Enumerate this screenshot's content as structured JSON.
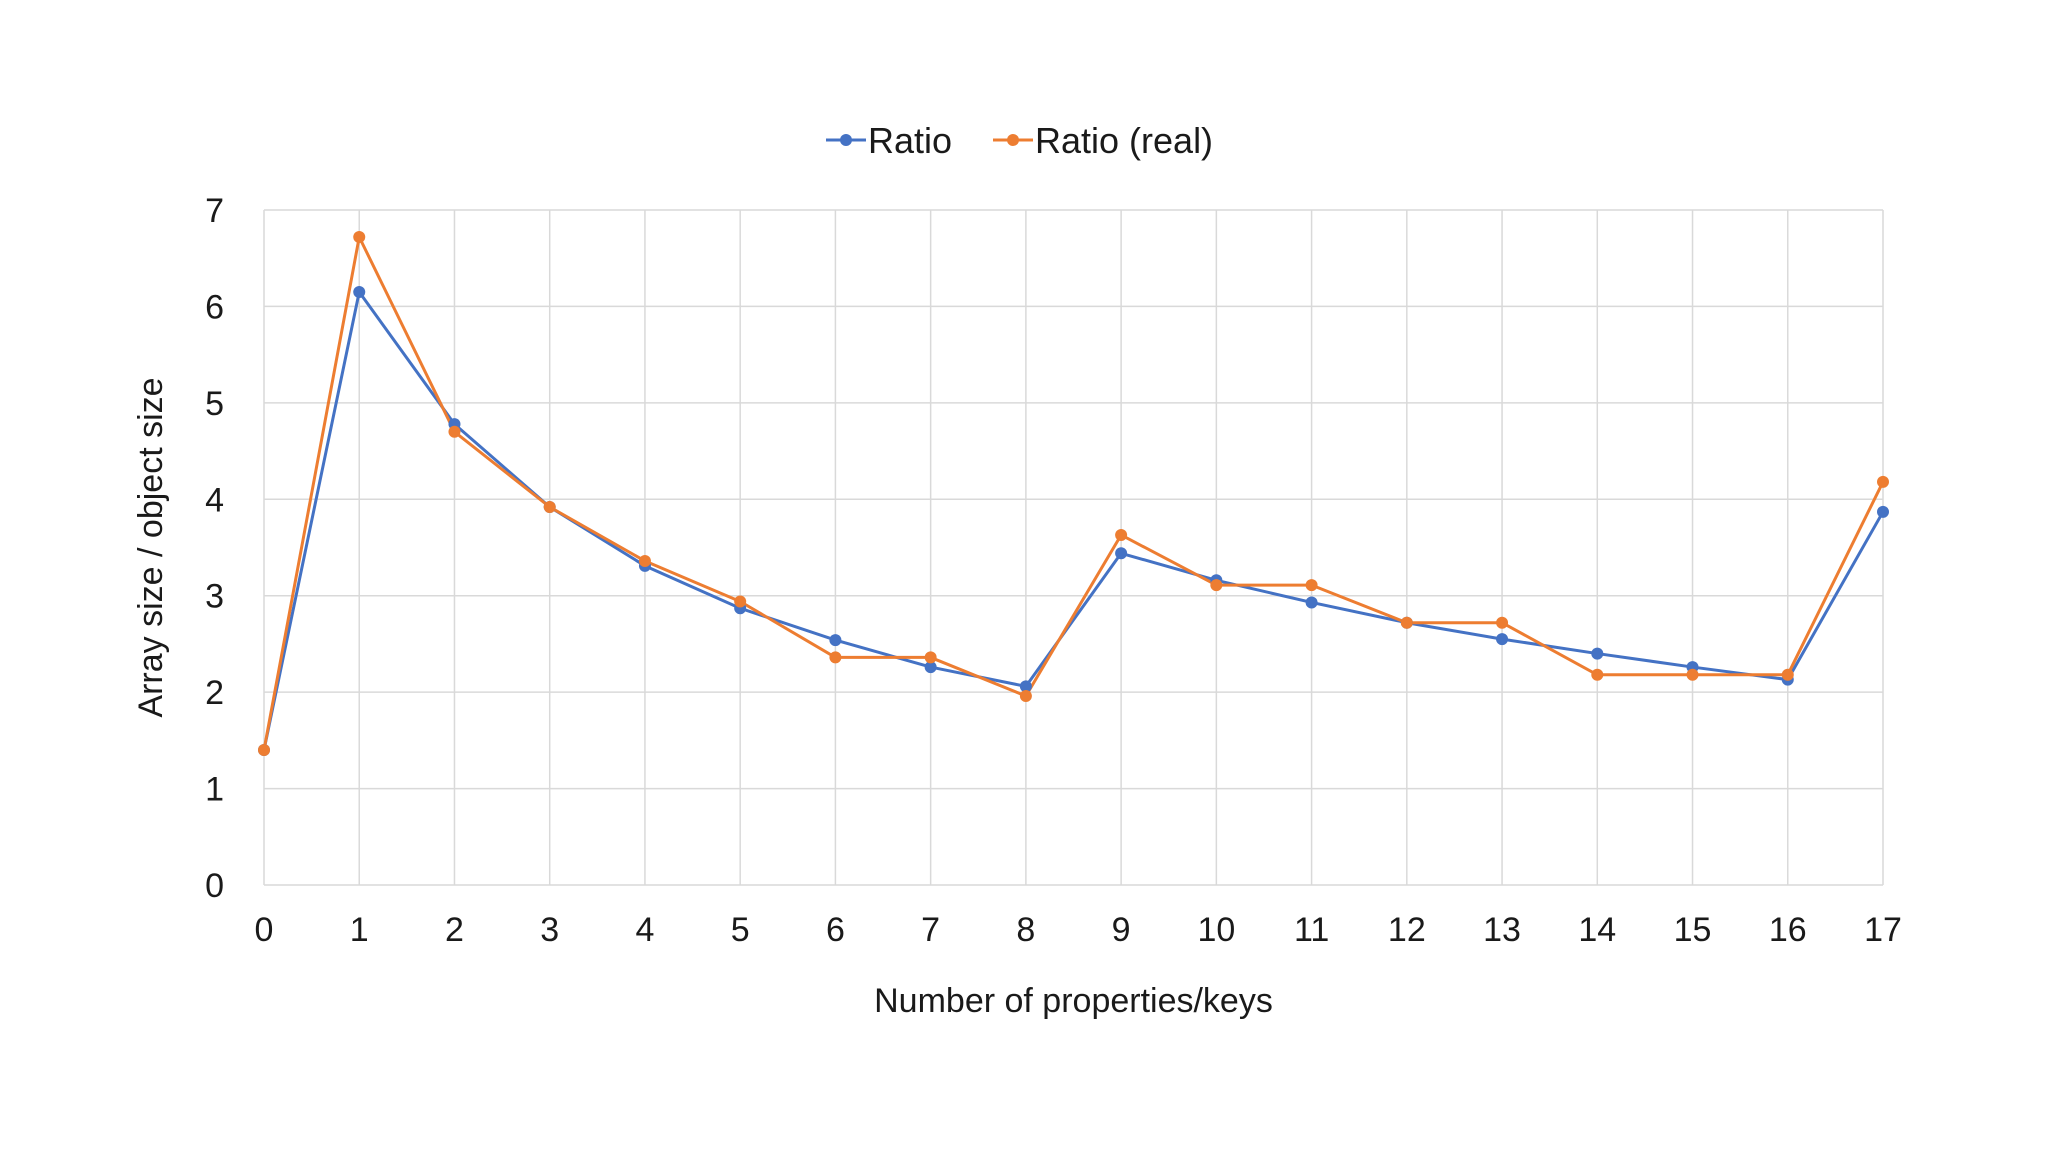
{
  "chart_data": {
    "type": "line",
    "title": "",
    "xlabel": "Number of properties/keys",
    "ylabel": "Array size / object size",
    "x": [
      0,
      1,
      2,
      3,
      4,
      5,
      6,
      7,
      8,
      9,
      10,
      11,
      12,
      13,
      14,
      15,
      16,
      17
    ],
    "xlim": [
      0,
      17
    ],
    "ylim": [
      0,
      7
    ],
    "yticks": [
      0,
      1,
      2,
      3,
      4,
      5,
      6,
      7
    ],
    "grid": true,
    "legend_position": "top-center",
    "series": [
      {
        "name": "Ratio",
        "color": "#4472C4",
        "values": [
          1.4,
          6.15,
          4.78,
          3.92,
          3.31,
          2.87,
          2.54,
          2.26,
          2.06,
          3.44,
          3.16,
          2.93,
          2.72,
          2.55,
          2.4,
          2.26,
          2.13,
          3.87
        ]
      },
      {
        "name": "Ratio (real)",
        "color": "#ED7D31",
        "values": [
          1.4,
          6.72,
          4.7,
          3.92,
          3.36,
          2.94,
          2.36,
          2.36,
          1.96,
          3.63,
          3.11,
          3.11,
          2.72,
          2.72,
          2.18,
          2.18,
          2.18,
          4.18
        ]
      }
    ]
  }
}
